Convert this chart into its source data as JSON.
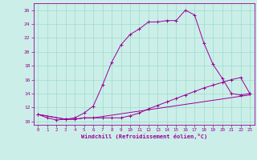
{
  "xlabel": "Windchill (Refroidissement éolien,°C)",
  "bg_color": "#cceee8",
  "line_color": "#990099",
  "grid_color": "#99ddcc",
  "xlim": [
    -0.5,
    23.5
  ],
  "ylim": [
    9.5,
    27.0
  ],
  "xticks": [
    0,
    1,
    2,
    3,
    4,
    5,
    6,
    7,
    8,
    9,
    10,
    11,
    12,
    13,
    14,
    15,
    16,
    17,
    18,
    19,
    20,
    21,
    22,
    23
  ],
  "yticks": [
    10,
    12,
    14,
    16,
    18,
    20,
    22,
    24,
    26
  ],
  "line1_x": [
    0,
    1,
    2,
    3,
    4,
    5,
    6,
    7,
    8,
    9,
    10,
    11,
    12,
    13,
    14,
    15,
    16,
    17,
    18,
    19,
    20,
    21,
    22,
    23
  ],
  "line1_y": [
    11,
    10.5,
    10.2,
    10.3,
    10.5,
    11.2,
    12.2,
    15.2,
    18.5,
    21.0,
    22.5,
    23.3,
    24.3,
    24.3,
    24.5,
    24.5,
    26.0,
    25.3,
    21.3,
    18.2,
    16.2,
    14.0,
    13.8,
    14.0
  ],
  "line2_x": [
    0,
    3,
    4,
    5,
    6,
    7,
    8,
    9,
    10,
    11,
    12,
    13,
    14,
    15,
    16,
    17,
    18,
    19,
    20,
    21,
    22,
    23
  ],
  "line2_y": [
    11,
    10.3,
    10.3,
    10.5,
    10.5,
    10.5,
    10.5,
    10.5,
    10.8,
    11.2,
    11.8,
    12.3,
    12.8,
    13.3,
    13.8,
    14.3,
    14.8,
    15.2,
    15.6,
    16.0,
    16.3,
    14.0
  ],
  "line3_x": [
    0,
    3,
    4,
    5,
    6,
    23
  ],
  "line3_y": [
    11,
    10.3,
    10.3,
    10.5,
    10.5,
    13.8
  ]
}
